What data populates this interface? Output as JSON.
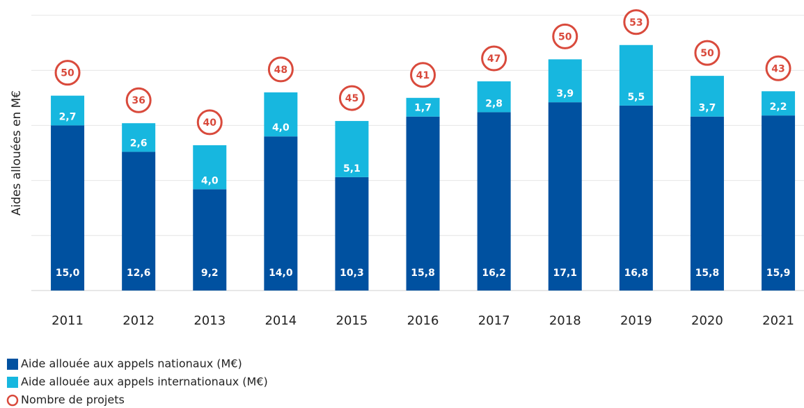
{
  "chart_data": {
    "type": "stacked_bar",
    "y_label": "Aides allouées en M€",
    "categories": [
      "2011",
      "2012",
      "2013",
      "2014",
      "2015",
      "2016",
      "2017",
      "2018",
      "2019",
      "2020",
      "2021"
    ],
    "series": [
      {
        "name": "Aide allouée aux appels nationaux (M€)",
        "color": "#0051a0",
        "values": [
          15.0,
          12.6,
          9.2,
          14.0,
          10.3,
          15.8,
          16.2,
          17.1,
          16.8,
          15.8,
          15.9
        ],
        "value_labels": [
          "15,0",
          "12,6",
          "9,2",
          "14,0",
          "10,3",
          "15,8",
          "16,2",
          "17,1",
          "16,8",
          "15,8",
          "15,9"
        ]
      },
      {
        "name": "Aide allouée aux appels internationaux (M€)",
        "color": "#17b7df",
        "values": [
          2.7,
          2.6,
          4.0,
          4.0,
          5.1,
          1.7,
          2.8,
          3.9,
          5.5,
          3.7,
          2.2
        ],
        "value_labels": [
          "2,7",
          "2,6",
          "4,0",
          "4,0",
          "5,1",
          "1,7",
          "2,8",
          "3,9",
          "5,5",
          "3,7",
          "2,2"
        ]
      }
    ],
    "projects": {
      "name": "Nombre de projets",
      "color": "#d94a3c",
      "values": [
        50,
        36,
        40,
        48,
        45,
        41,
        47,
        50,
        53,
        50,
        43
      ]
    },
    "ylim": [
      0,
      25
    ],
    "yticks": [
      0,
      5,
      10,
      15,
      20,
      25
    ],
    "grid": true
  }
}
